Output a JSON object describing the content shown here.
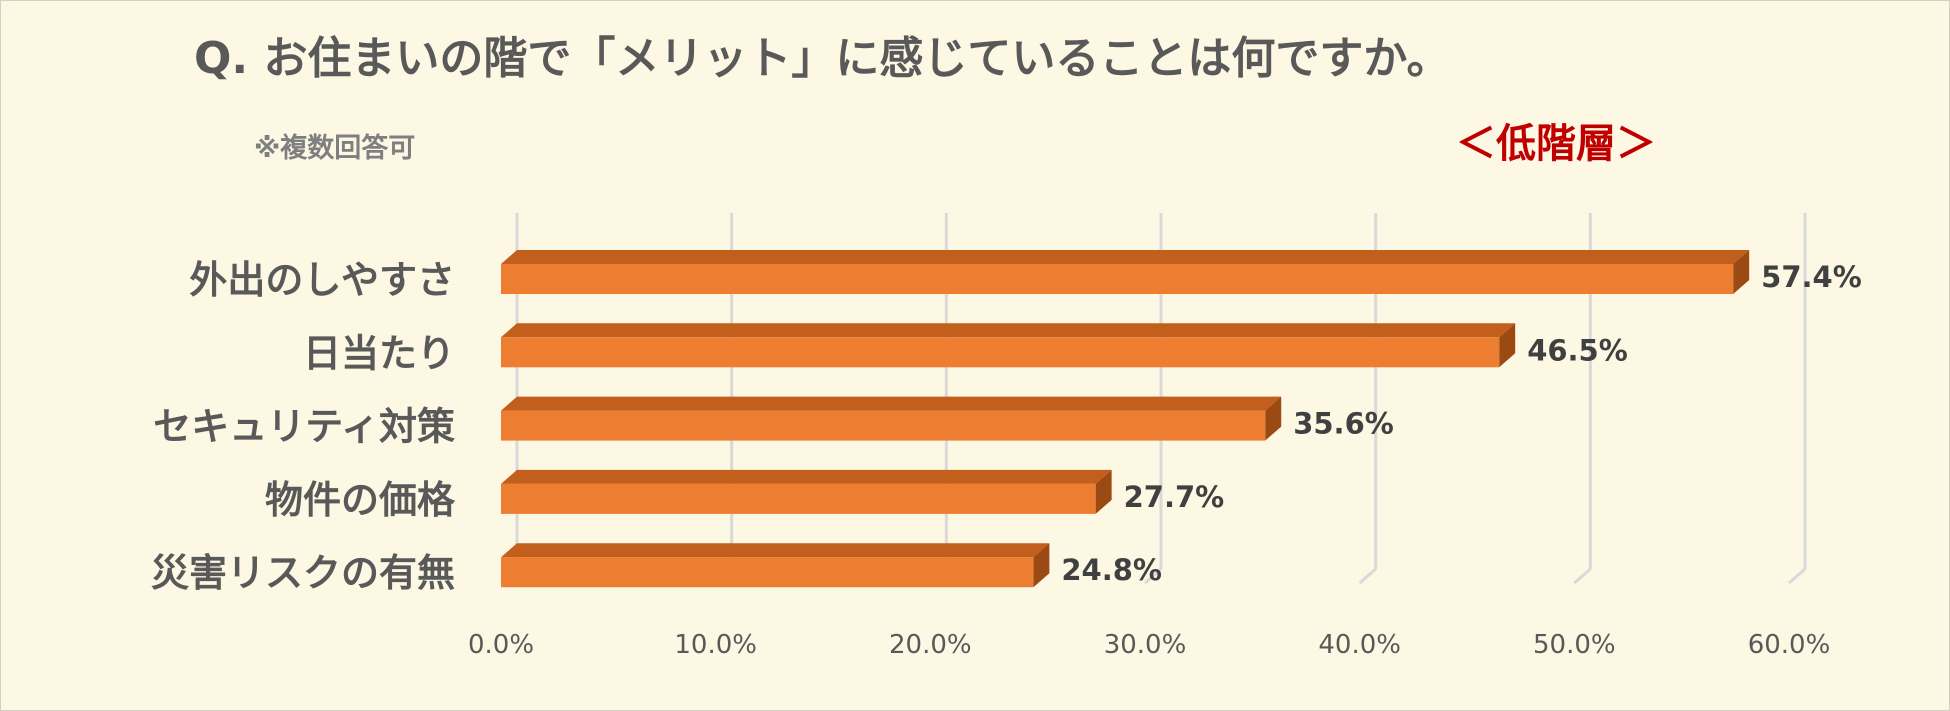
{
  "chart_data": {
    "type": "bar",
    "orientation": "horizontal",
    "title": "Q. お住まいの階で「メリット」に感じていることは何ですか。",
    "note": "※複数回答可",
    "segment_label": "＜低階層＞",
    "categories": [
      "外出のしやすさ",
      "日当たり",
      "セキュリティ対策",
      "物件の価格",
      "災害リスクの有無"
    ],
    "values": [
      57.4,
      46.5,
      35.6,
      27.7,
      24.8
    ],
    "value_labels": [
      "57.4%",
      "46.5%",
      "35.6%",
      "27.7%",
      "24.8%"
    ],
    "xlim": [
      0,
      60
    ],
    "xticks": [
      0,
      10,
      20,
      30,
      40,
      50,
      60
    ],
    "xtick_labels": [
      "0.0%",
      "10.0%",
      "20.0%",
      "30.0%",
      "40.0%",
      "50.0%",
      "60.0%"
    ],
    "grid": true,
    "legend": "none",
    "colors": {
      "background": "#fdf8e4",
      "bar_front": "#ed7d31",
      "bar_top": "#c35f1c",
      "bar_side": "#9c4a14",
      "grid": "#d9d9d9",
      "text": "#595959",
      "value_text": "#404040",
      "segment_label": "#c00000"
    }
  }
}
